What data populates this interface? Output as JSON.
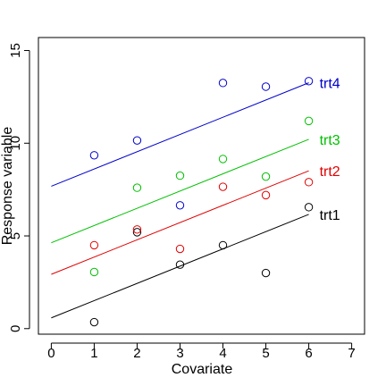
{
  "chart_data": {
    "type": "scatter",
    "title": "",
    "xlabel": "Covariate",
    "ylabel": "Response variable",
    "xlim": [
      -0.3,
      7.3
    ],
    "ylim": [
      -0.3,
      15.7
    ],
    "xticks": [
      0,
      1,
      2,
      3,
      4,
      5,
      6,
      7
    ],
    "yticks": [
      0,
      5,
      10,
      15
    ],
    "grid": false,
    "legend": "none",
    "series": [
      {
        "name": "trt1",
        "color": "#000000",
        "points": [
          [
            1,
            0.35
          ],
          [
            2,
            5.2
          ],
          [
            3,
            3.45
          ],
          [
            4,
            4.5
          ],
          [
            5,
            3.0
          ],
          [
            6,
            6.55
          ]
        ],
        "fit": {
          "intercept": 0.58,
          "slope": 0.93
        }
      },
      {
        "name": "trt2",
        "color": "#e00000",
        "points": [
          [
            1,
            4.5
          ],
          [
            2,
            5.35
          ],
          [
            3,
            4.3
          ],
          [
            4,
            7.65
          ],
          [
            5,
            7.2
          ],
          [
            6,
            7.9
          ]
        ],
        "fit": {
          "intercept": 2.93,
          "slope": 0.93
        }
      },
      {
        "name": "trt3",
        "color": "#00c000",
        "points": [
          [
            1,
            3.05
          ],
          [
            2,
            7.6
          ],
          [
            3,
            8.25
          ],
          [
            4,
            9.15
          ],
          [
            5,
            8.2
          ],
          [
            6,
            11.2
          ]
        ],
        "fit": {
          "intercept": 4.63,
          "slope": 0.93
        }
      },
      {
        "name": "trt4",
        "color": "#0000cc",
        "points": [
          [
            1,
            9.35
          ],
          [
            2,
            10.15
          ],
          [
            3,
            6.65
          ],
          [
            4,
            13.25
          ],
          [
            5,
            13.05
          ],
          [
            6,
            13.35
          ]
        ],
        "fit": {
          "intercept": 7.68,
          "slope": 0.93
        }
      }
    ]
  }
}
